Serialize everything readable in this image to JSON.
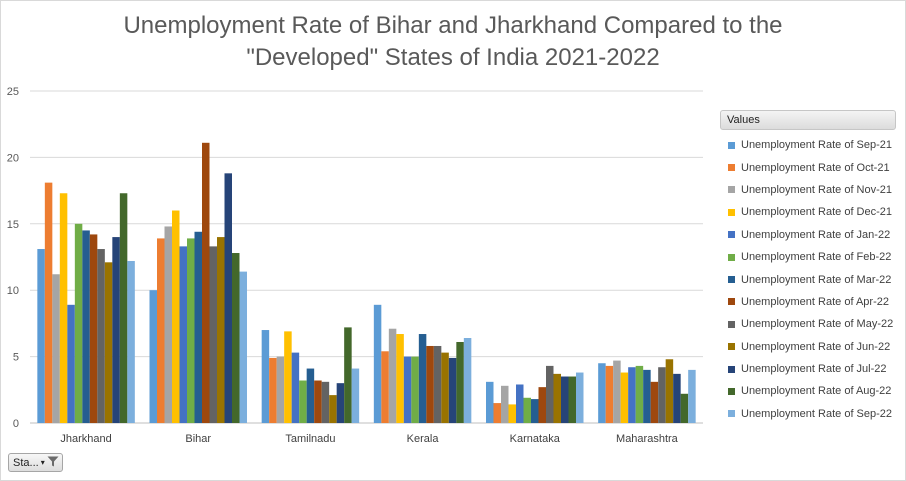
{
  "chart_data": {
    "type": "bar",
    "title": "Unemployment Rate of Bihar and Jharkhand Compared to the \"Developed\" States of India 2021-2022",
    "title_lines": [
      "Unemployment Rate of Bihar and Jharkhand Compared to the",
      "\"Developed\" States of India 2021-2022"
    ],
    "categories": [
      "Jharkhand",
      "Bihar",
      "Tamilnadu",
      "Kerala",
      "Karnataka",
      "Maharashtra"
    ],
    "ylim": [
      0,
      25
    ],
    "yticks": [
      "0",
      "5",
      "10",
      "15",
      "20",
      "25"
    ],
    "grid": true,
    "legend_title": "Values",
    "legend_position": "right",
    "series": [
      {
        "name": "Unemployment Rate of Sep-21",
        "color": "#5b9bd5",
        "values": [
          13.1,
          10.0,
          7.0,
          8.9,
          3.1,
          4.5
        ]
      },
      {
        "name": "Unemployment Rate of Oct-21",
        "color": "#ed7d31",
        "values": [
          18.1,
          13.9,
          4.9,
          5.4,
          1.5,
          4.3
        ]
      },
      {
        "name": "Unemployment Rate of Nov-21",
        "color": "#a5a5a5",
        "values": [
          11.2,
          14.8,
          5.0,
          7.1,
          2.8,
          4.7
        ]
      },
      {
        "name": "Unemployment Rate of Dec-21",
        "color": "#ffc000",
        "values": [
          17.3,
          16.0,
          6.9,
          6.7,
          1.4,
          3.8
        ]
      },
      {
        "name": "Unemployment Rate of Jan-22",
        "color": "#4472c4",
        "values": [
          8.9,
          13.3,
          5.3,
          5.0,
          2.9,
          4.2
        ]
      },
      {
        "name": "Unemployment Rate of Feb-22",
        "color": "#70ad47",
        "values": [
          15.0,
          13.9,
          3.2,
          5.0,
          1.9,
          4.3
        ]
      },
      {
        "name": "Unemployment Rate of Mar-22",
        "color": "#255e91",
        "values": [
          14.5,
          14.4,
          4.1,
          6.7,
          1.8,
          4.0
        ]
      },
      {
        "name": "Unemployment Rate of Apr-22",
        "color": "#9e480e",
        "values": [
          14.2,
          21.1,
          3.2,
          5.8,
          2.7,
          3.1
        ]
      },
      {
        "name": "Unemployment Rate of May-22",
        "color": "#636363",
        "values": [
          13.1,
          13.3,
          3.1,
          5.8,
          4.3,
          4.2
        ]
      },
      {
        "name": "Unemployment Rate of Jun-22",
        "color": "#997300",
        "values": [
          12.1,
          14.0,
          2.1,
          5.3,
          3.7,
          4.8
        ]
      },
      {
        "name": "Unemployment Rate of Jul-22",
        "color": "#264478",
        "values": [
          14.0,
          18.8,
          3.0,
          4.9,
          3.5,
          3.7
        ]
      },
      {
        "name": "Unemployment Rate of Aug-22",
        "color": "#43682b",
        "values": [
          17.3,
          12.8,
          7.2,
          6.1,
          3.5,
          2.2
        ]
      },
      {
        "name": "Unemployment Rate of Sep-22",
        "color": "#7cafdd",
        "values": [
          12.2,
          11.4,
          4.1,
          6.4,
          3.8,
          4.0
        ]
      }
    ]
  },
  "filter_button": {
    "label": "Sta...",
    "caret": "▾",
    "icon": "funnel-icon"
  }
}
